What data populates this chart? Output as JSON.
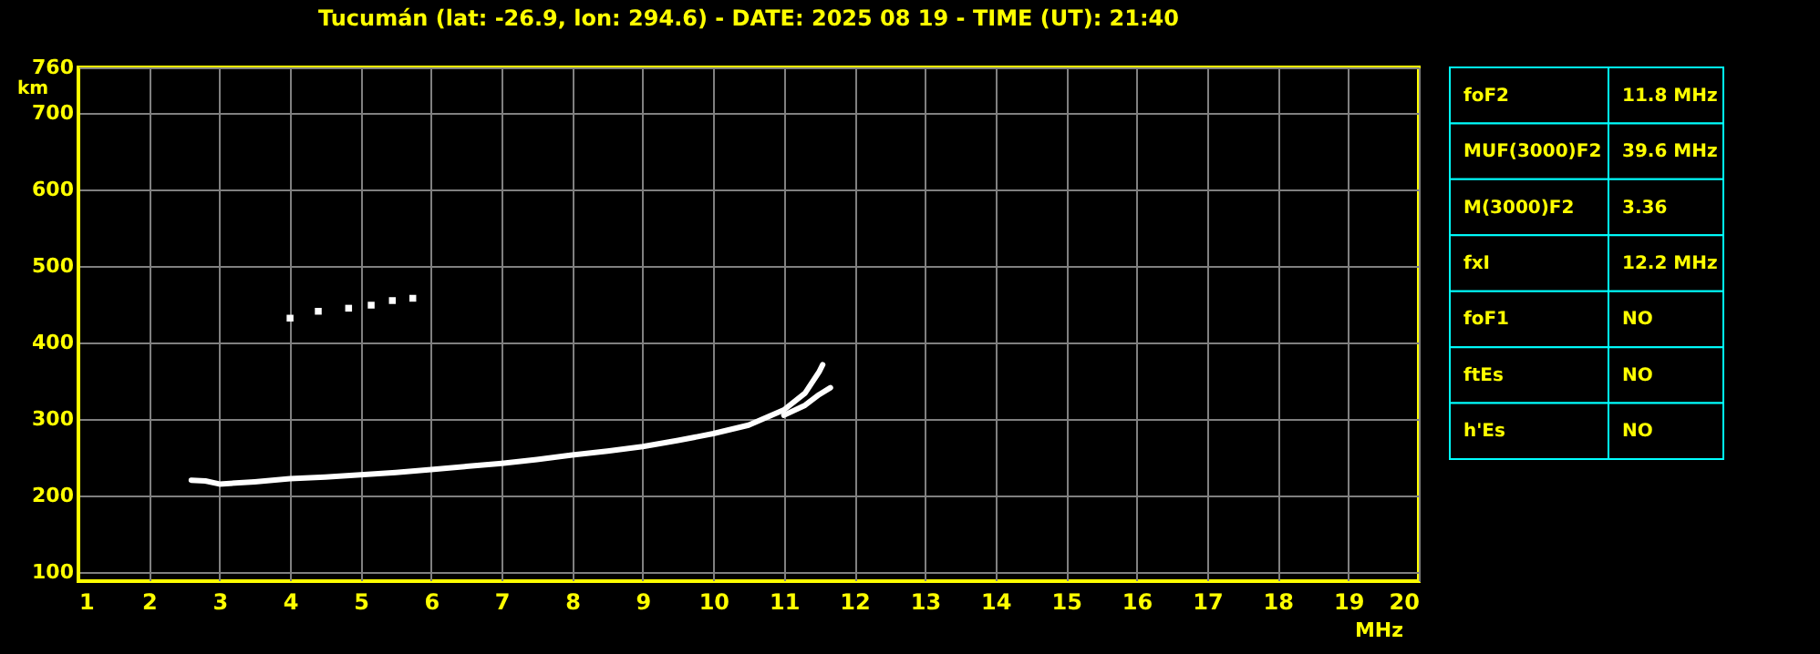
{
  "chart_data": [
    {
      "type": "line",
      "title": "Tucumán (lat: -26.9, lon: 294.6) - DATE: 2025 08 19 - TIME (UT): 21:40",
      "xlabel": "MHz",
      "ylabel": "km",
      "xlim": [
        1,
        20
      ],
      "ylim": [
        88,
        760
      ],
      "xticks": [
        1,
        2,
        3,
        4,
        5,
        6,
        7,
        8,
        9,
        10,
        11,
        12,
        13,
        14,
        15,
        16,
        17,
        18,
        19,
        20
      ],
      "yticks": [
        100,
        200,
        300,
        400,
        500,
        600,
        700,
        760
      ],
      "grid": true,
      "series": [
        {
          "type": "line",
          "color": "#ffffff",
          "x": [
            2.6,
            2.8,
            3.0,
            3.5,
            4,
            4.5,
            5,
            5.5,
            6,
            6.5,
            7,
            7.5,
            8,
            8.5,
            9,
            9.5,
            10,
            10.5,
            11,
            11.3,
            11.5,
            11.55
          ],
          "values": [
            220,
            219,
            215,
            218,
            222,
            224,
            227,
            230,
            234,
            238,
            242,
            247,
            253,
            258,
            264,
            272,
            281,
            292,
            312,
            334,
            362,
            371
          ]
        },
        {
          "type": "line",
          "color": "#ffffff",
          "x": [
            11.0,
            11.3,
            11.5,
            11.66
          ],
          "values": [
            305,
            318,
            332,
            341
          ]
        },
        {
          "type": "scatter",
          "color": "#ffffff",
          "x": [
            4.0,
            4.4,
            4.83,
            5.15,
            5.45,
            5.74
          ],
          "values": [
            432,
            441,
            445,
            449,
            455,
            458
          ]
        }
      ]
    },
    {
      "type": "other",
      "categories": [
        "foF2",
        "MUF(3000)F2",
        "M(3000)F2",
        "fxI",
        "foF1",
        "ftEs",
        "h'Es"
      ],
      "value_labels": [
        "11.8 MHz",
        "39.6 MHz",
        "3.36",
        "12.2 MHz",
        "NO",
        "NO",
        "NO"
      ]
    }
  ]
}
